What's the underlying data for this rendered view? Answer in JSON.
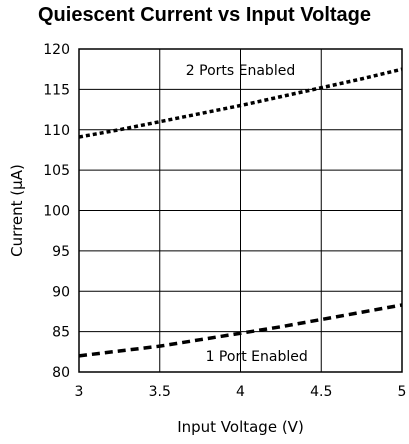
{
  "title": "Quiescent Current vs Input Voltage",
  "chart_data": {
    "type": "line",
    "title": "Quiescent Current vs Input Voltage",
    "xlabel": "Input Voltage (V)",
    "ylabel": "Current (μA)",
    "xlim": [
      3,
      5
    ],
    "ylim": [
      80,
      120
    ],
    "x_ticks": [
      3,
      3.5,
      4,
      4.5,
      5
    ],
    "x_tick_labels": [
      "3",
      "3.5",
      "4",
      "4.5",
      "5"
    ],
    "y_ticks": [
      80,
      85,
      90,
      95,
      100,
      105,
      110,
      115,
      120
    ],
    "y_tick_labels": [
      "80",
      "85",
      "90",
      "95",
      "100",
      "105",
      "110",
      "115",
      "120"
    ],
    "grid": true,
    "series": [
      {
        "name": "2 Ports Enabled",
        "line_style": "dotted",
        "x": [
          3.0,
          3.25,
          3.5,
          3.75,
          4.0,
          4.25,
          4.5,
          4.75,
          5.0
        ],
        "values": [
          109.1,
          110.0,
          111.0,
          112.0,
          113.0,
          114.1,
          115.2,
          116.3,
          117.5
        ]
      },
      {
        "name": "1 Port Enabled",
        "line_style": "dashed",
        "x": [
          3.0,
          3.25,
          3.5,
          3.75,
          4.0,
          4.25,
          4.5,
          4.75,
          5.0
        ],
        "values": [
          82.0,
          82.6,
          83.2,
          84.0,
          84.8,
          85.6,
          86.5,
          87.4,
          88.3
        ]
      }
    ],
    "annotations": [
      {
        "text": "2 Ports Enabled",
        "x": 4.0,
        "y": 117.4
      },
      {
        "text": "1 Port Enabled",
        "x": 4.1,
        "y": 82.0
      }
    ]
  }
}
